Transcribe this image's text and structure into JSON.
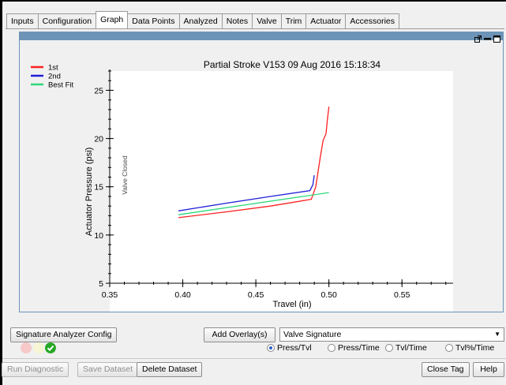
{
  "tabs": [
    "Inputs",
    "Configuration",
    "Graph",
    "Data Points",
    "Analyzed",
    "Notes",
    "Valve",
    "Trim",
    "Actuator",
    "Accessories"
  ],
  "active_tab": "Graph",
  "chart_data": {
    "type": "line",
    "title": "Partial Stroke V153 09 Aug 2016 15:18:34",
    "xlabel": "Travel (in)",
    "ylabel": "Actuator Pressure (psi)",
    "xlim": [
      0.35,
      0.585
    ],
    "ylim": [
      5,
      27
    ],
    "x_ticks": [
      0.35,
      0.4,
      0.45,
      0.5,
      0.55
    ],
    "x_tick_labels": [
      "0.35",
      "0.40",
      "0.45",
      "0.50",
      "0.55"
    ],
    "y_ticks": [
      5,
      10,
      15,
      20,
      25
    ],
    "y_tick_labels": [
      "5",
      "10",
      "15",
      "20",
      "25"
    ],
    "grid": false,
    "legend_position": "top-left",
    "annotation": "Valve Closed",
    "series": [
      {
        "name": "1st",
        "color": "#ff2020",
        "x": [
          0.397,
          0.43,
          0.46,
          0.488,
          0.491,
          0.494,
          0.496,
          0.498,
          0.499,
          0.5
        ],
        "y": [
          11.8,
          12.4,
          13.0,
          13.7,
          15.0,
          18.0,
          19.8,
          20.5,
          22.0,
          23.3
        ]
      },
      {
        "name": "2nd",
        "color": "#1f1fd8",
        "x": [
          0.397,
          0.43,
          0.46,
          0.487,
          0.489,
          0.49
        ],
        "y": [
          12.5,
          13.3,
          14.0,
          14.6,
          15.2,
          16.2
        ]
      },
      {
        "name": "Best Fit",
        "color": "#2ed87c",
        "x": [
          0.397,
          0.5
        ],
        "y": [
          12.1,
          14.4
        ]
      }
    ]
  },
  "buttons": {
    "signature_config": "Signature Analyzer Config",
    "add_overlay": "Add Overlay(s)",
    "run_diagnostic": "Run Diagnostic",
    "save_dataset": "Save Dataset",
    "delete_dataset": "Delete Dataset",
    "close_tag": "Close Tag",
    "help": "Help"
  },
  "overlay_select": {
    "value": "Valve Signature"
  },
  "radio_options": [
    {
      "label": "Press/Tvl",
      "selected": true
    },
    {
      "label": "Press/Time",
      "selected": false
    },
    {
      "label": "Tvl/Time",
      "selected": false
    },
    {
      "label": "Tvl%/Time",
      "selected": false
    }
  ],
  "status_lights": {
    "red": "#f7c8c8",
    "yellow": "#f6f6d4",
    "green": "#26a826"
  }
}
